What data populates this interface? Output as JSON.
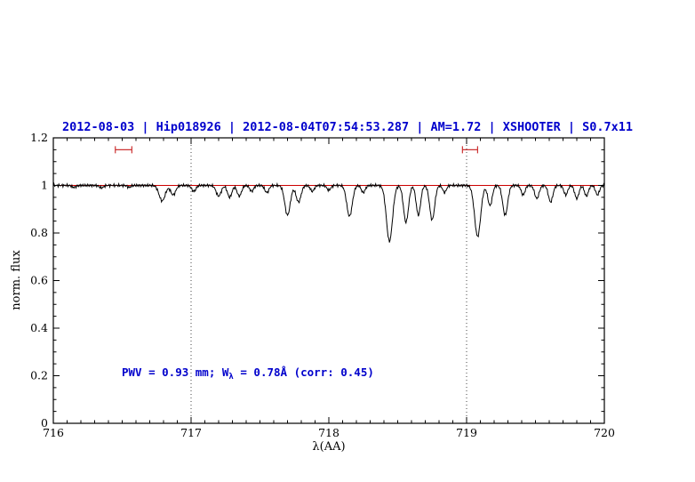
{
  "title": {
    "text": "2012-08-03 | Hip018926 | 2012-08-04T07:54:53.287 | AM=1.72 | XSHOOTER | S0.7x11",
    "color": "#0000cc"
  },
  "annotation": {
    "part1": "PWV = 0.93 mm; W",
    "sub": "λ",
    "part2": " = 0.78Å (corr: 0.45)",
    "color": "#0000cc"
  },
  "chart_data": {
    "type": "line",
    "title": "2012-08-03 | Hip018926 | 2012-08-04T07:54:53.287 | AM=1.72 | XSHOOTER | S0.7x11",
    "xlabel": "λ(AA)",
    "ylabel": "norm. flux",
    "xlim": [
      716,
      720
    ],
    "ylim": [
      0,
      1.2
    ],
    "xticks": [
      716,
      717,
      718,
      719,
      720
    ],
    "xtick_labels": [
      "716",
      "717",
      "718",
      "719",
      "720"
    ],
    "yticks": [
      0,
      0.2,
      0.4,
      0.6,
      0.8,
      1,
      1.2
    ],
    "ytick_labels": [
      "0",
      "0.2",
      "0.4",
      "0.6",
      "0.8",
      "1",
      "1.2"
    ],
    "minor_x_step": 0.1,
    "minor_y_step": 0.05,
    "grid": "off",
    "legend": "none",
    "dotted_vlines": [
      717,
      719
    ],
    "colors": {
      "dotted": "#444444",
      "frame": "#000000"
    },
    "continuum": {
      "y": 1.0,
      "color": "#cc0000"
    },
    "interval_markers": {
      "y": 1.15,
      "color": "#cc3333",
      "spans": [
        [
          716.45,
          716.57
        ],
        [
          718.97,
          719.08
        ]
      ]
    },
    "spectrum": {
      "color": "#000000",
      "continuum_level": 1.0,
      "sample_step": 0.005,
      "noise_amplitude": 0.004,
      "absorption_lines": [
        {
          "center": 716.15,
          "depth": 0.008,
          "sigma": 0.015
        },
        {
          "center": 716.35,
          "depth": 0.01,
          "sigma": 0.015
        },
        {
          "center": 716.55,
          "depth": 0.008,
          "sigma": 0.012
        },
        {
          "center": 716.79,
          "depth": 0.065,
          "sigma": 0.022
        },
        {
          "center": 716.87,
          "depth": 0.04,
          "sigma": 0.018
        },
        {
          "center": 717.02,
          "depth": 0.025,
          "sigma": 0.015
        },
        {
          "center": 717.2,
          "depth": 0.045,
          "sigma": 0.018
        },
        {
          "center": 717.28,
          "depth": 0.05,
          "sigma": 0.016
        },
        {
          "center": 717.35,
          "depth": 0.045,
          "sigma": 0.016
        },
        {
          "center": 717.44,
          "depth": 0.025,
          "sigma": 0.014
        },
        {
          "center": 717.55,
          "depth": 0.03,
          "sigma": 0.015
        },
        {
          "center": 717.7,
          "depth": 0.125,
          "sigma": 0.02
        },
        {
          "center": 717.78,
          "depth": 0.07,
          "sigma": 0.018
        },
        {
          "center": 717.88,
          "depth": 0.025,
          "sigma": 0.014
        },
        {
          "center": 718.0,
          "depth": 0.02,
          "sigma": 0.014
        },
        {
          "center": 718.15,
          "depth": 0.13,
          "sigma": 0.02
        },
        {
          "center": 718.25,
          "depth": 0.03,
          "sigma": 0.014
        },
        {
          "center": 718.44,
          "depth": 0.235,
          "sigma": 0.022
        },
        {
          "center": 718.56,
          "depth": 0.155,
          "sigma": 0.018
        },
        {
          "center": 718.65,
          "depth": 0.125,
          "sigma": 0.016
        },
        {
          "center": 718.75,
          "depth": 0.145,
          "sigma": 0.018
        },
        {
          "center": 718.84,
          "depth": 0.03,
          "sigma": 0.013
        },
        {
          "center": 719.08,
          "depth": 0.215,
          "sigma": 0.022
        },
        {
          "center": 719.17,
          "depth": 0.085,
          "sigma": 0.016
        },
        {
          "center": 719.28,
          "depth": 0.125,
          "sigma": 0.018
        },
        {
          "center": 719.41,
          "depth": 0.04,
          "sigma": 0.014
        },
        {
          "center": 719.51,
          "depth": 0.055,
          "sigma": 0.016
        },
        {
          "center": 719.61,
          "depth": 0.07,
          "sigma": 0.016
        },
        {
          "center": 719.72,
          "depth": 0.04,
          "sigma": 0.014
        },
        {
          "center": 719.8,
          "depth": 0.055,
          "sigma": 0.015
        },
        {
          "center": 719.87,
          "depth": 0.045,
          "sigma": 0.014
        },
        {
          "center": 719.95,
          "depth": 0.04,
          "sigma": 0.014
        }
      ]
    },
    "annotation": {
      "text": "PWV = 0.93 mm; W_λ = 0.78Å (corr: 0.45)",
      "x": 716.5,
      "y": 0.2
    }
  }
}
